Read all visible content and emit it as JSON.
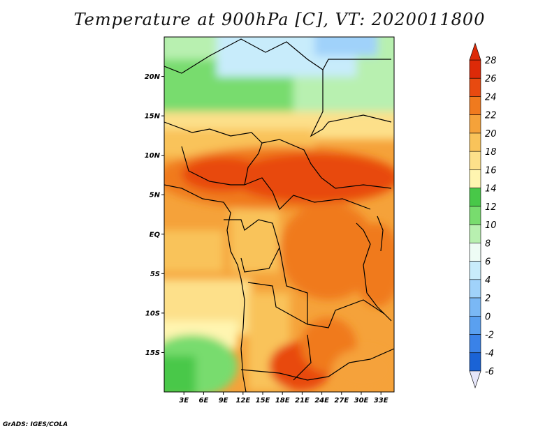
{
  "title": "Temperature at 900hPa [C], VT: 2020011800",
  "credit": "GrADS: IGES/COLA",
  "map": {
    "lon_range": [
      0,
      35
    ],
    "lat_range": [
      -20,
      25
    ],
    "lat_ticks": [
      {
        "lat": 20,
        "label": "20N"
      },
      {
        "lat": 15,
        "label": "15N"
      },
      {
        "lat": 10,
        "label": "10N"
      },
      {
        "lat": 5,
        "label": "5N"
      },
      {
        "lat": 0,
        "label": "EQ"
      },
      {
        "lat": -5,
        "label": "5S"
      },
      {
        "lat": -10,
        "label": "10S"
      },
      {
        "lat": -15,
        "label": "15S"
      }
    ],
    "lon_ticks": [
      {
        "lon": 3,
        "label": "3E"
      },
      {
        "lon": 6,
        "label": "6E"
      },
      {
        "lon": 9,
        "label": "9E"
      },
      {
        "lon": 12,
        "label": "12E"
      },
      {
        "lon": 15,
        "label": "15E"
      },
      {
        "lon": 18,
        "label": "18E"
      },
      {
        "lon": 21,
        "label": "21E"
      },
      {
        "lon": 24,
        "label": "24E"
      },
      {
        "lon": 27,
        "label": "27E"
      },
      {
        "lon": 30,
        "label": "30E"
      },
      {
        "lon": 33,
        "label": "33E"
      }
    ]
  },
  "colorbar": {
    "levels": [
      "-6",
      "-4",
      "-2",
      "0",
      "2",
      "4",
      "6",
      "8",
      "10",
      "12",
      "14",
      "16",
      "18",
      "20",
      "22",
      "24",
      "26",
      "28"
    ],
    "colors": [
      "#0a0a6e",
      "#0b3fb3",
      "#1a63d6",
      "#3a82e8",
      "#5aa0f0",
      "#7ab8f5",
      "#a0d2fa",
      "#c8ecfb",
      "#eefcf5",
      "#b8f0b0",
      "#78dc6e",
      "#48c848",
      "#fff5b0",
      "#fde08a",
      "#f9c35a",
      "#f5a23a",
      "#f07a1e",
      "#e84a10",
      "#dd2a08"
    ],
    "over_color": "#dd2a08",
    "under_color": "#e6e6fa"
  }
}
